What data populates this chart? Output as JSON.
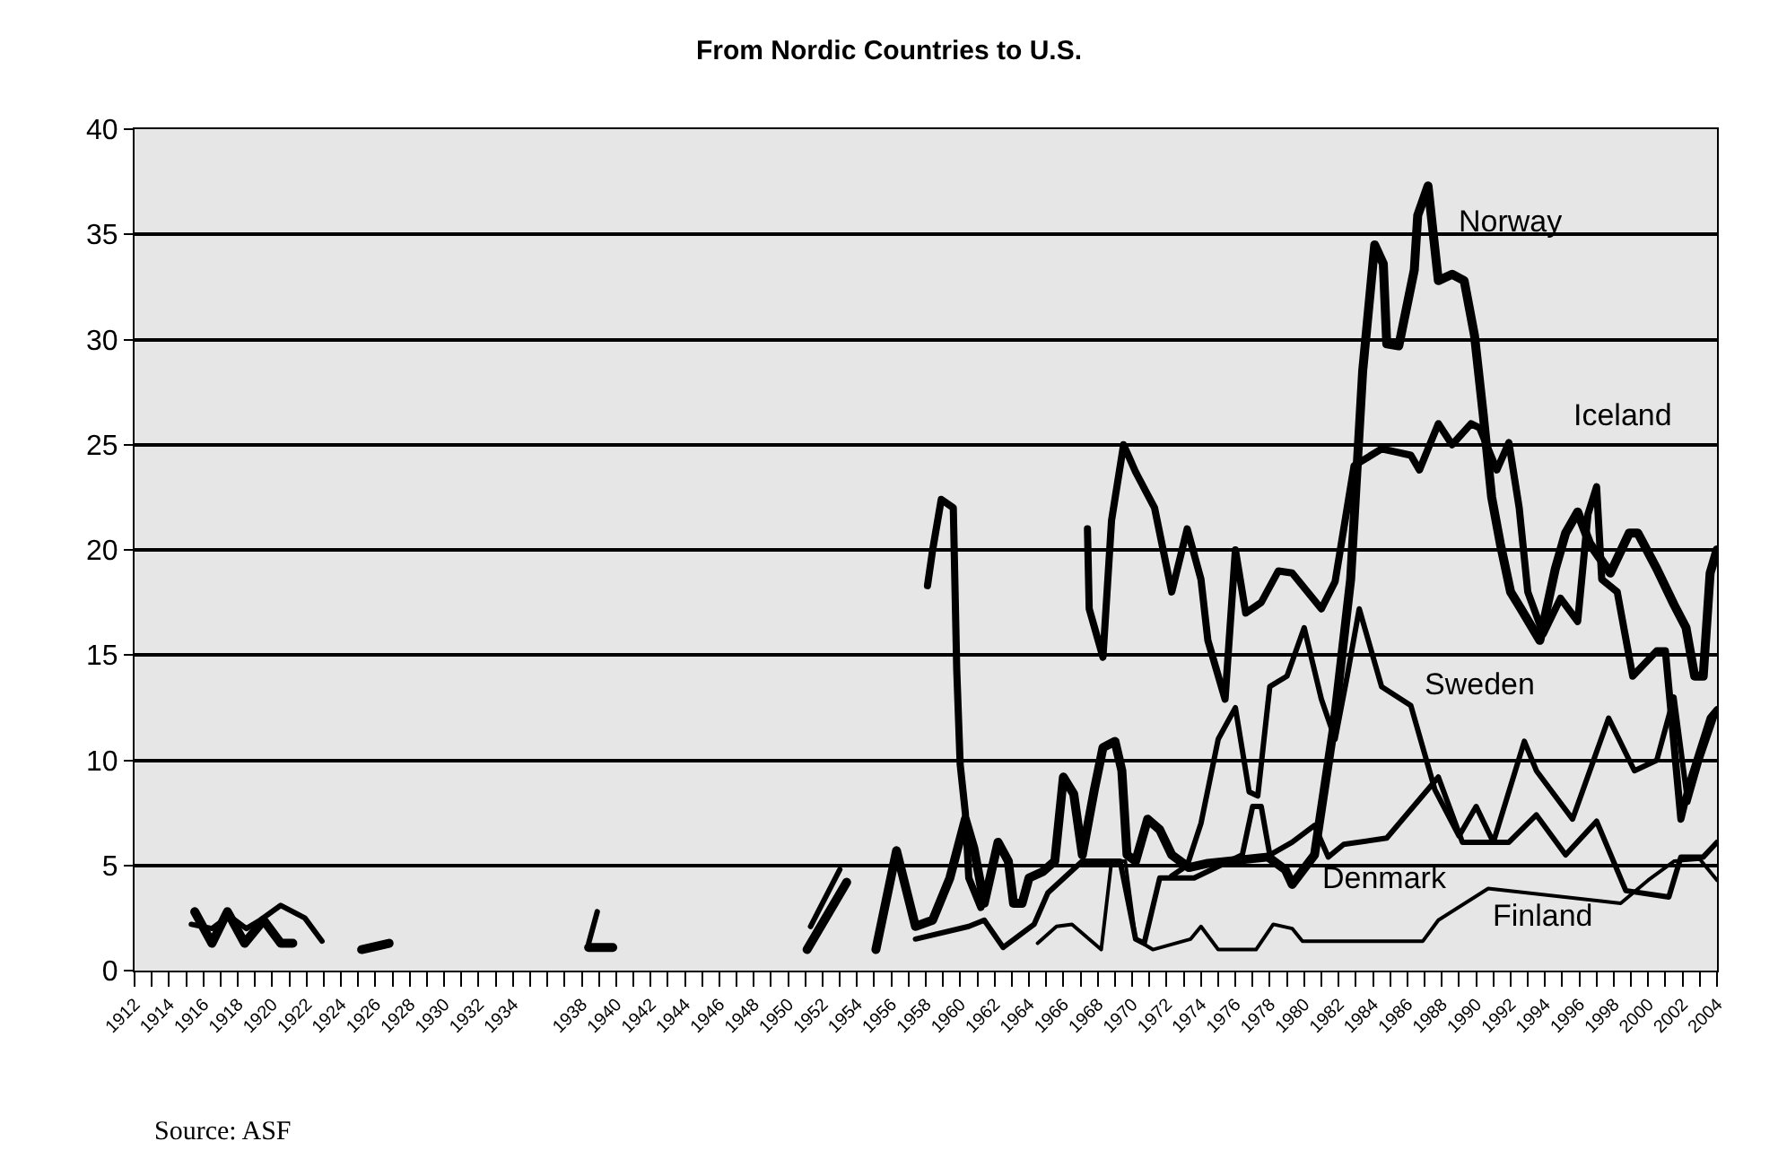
{
  "chart_data": {
    "type": "line",
    "title": "From Nordic Countries to U.S.",
    "xlim": [
      1912,
      2004
    ],
    "ylim": [
      0,
      40
    ],
    "xticks": [
      1912,
      1914,
      1916,
      1918,
      1920,
      1922,
      1924,
      1926,
      1928,
      1930,
      1932,
      1934,
      1938,
      1940,
      1942,
      1944,
      1946,
      1948,
      1950,
      1952,
      1954,
      1956,
      1958,
      1960,
      1962,
      1964,
      1966,
      1968,
      1970,
      1972,
      1974,
      1976,
      1978,
      1980,
      1982,
      1984,
      1986,
      1988,
      1990,
      1992,
      1994,
      1996,
      1998,
      2000,
      2002,
      2004
    ],
    "yticks": [
      0,
      5,
      10,
      15,
      20,
      25,
      30,
      35,
      40
    ],
    "grid": "y",
    "legend": false,
    "marker": "none",
    "line_style": "solid",
    "series": [
      {
        "name": "Norway",
        "color": "#000000",
        "x": [
          1915.5,
          1916.5,
          1917.4,
          1918.4,
          1919.5,
          1920.5,
          1921.2,
          1921.3,
          1925.2,
          1926.8,
          1926.9,
          1938.4,
          1939.8,
          1939.9,
          1951.1,
          1953.4,
          1953.5,
          1955.1,
          1956.3,
          1957.4,
          1958.4,
          1959.4,
          1960.3,
          1960.8,
          1961.4,
          1962.2,
          1962.8,
          1963.1,
          1963.6,
          1964.0,
          1964.8,
          1965.5,
          1966.0,
          1966.6,
          1967.1,
          1967.8,
          1968.3,
          1969.0,
          1969.4,
          1969.7,
          1970.2,
          1970.9,
          1971.6,
          1972.3,
          1973.3,
          1974.4,
          1977.9,
          1978.9,
          1979.3,
          1980.6,
          1981.7,
          1982.7,
          1983.4,
          1984.1,
          1984.6,
          1984.8,
          1985.5,
          1986.4,
          1986.6,
          1987.2,
          1987.8,
          1988.6,
          1989.3,
          1989.9,
          1990.4,
          1990.9,
          1991.4,
          1992.0,
          1992.6,
          1993.7,
          1994.6,
          1995.2,
          1995.9,
          1996.6,
          1997.8,
          1998.9,
          1999.4,
          2000.5,
          2001.5,
          2002.2,
          2002.7,
          2003.2,
          2003.6,
          2004.0
        ],
        "values": [
          2.8,
          1.3,
          2.8,
          1.3,
          2.4,
          1.3,
          1.3,
          null,
          1.0,
          1.3,
          null,
          1.1,
          1.1,
          null,
          1.0,
          4.2,
          null,
          1.0,
          5.7,
          2.1,
          2.4,
          4.4,
          7.2,
          5.8,
          3.2,
          6.1,
          5.2,
          3.2,
          3.2,
          4.4,
          4.7,
          5.2,
          9.2,
          8.4,
          5.5,
          8.6,
          10.6,
          10.9,
          9.5,
          5.5,
          5.2,
          7.2,
          6.7,
          5.5,
          4.9,
          5.1,
          5.4,
          4.8,
          4.1,
          5.5,
          11.5,
          18.6,
          28.5,
          34.5,
          33.6,
          29.8,
          29.7,
          33.3,
          35.9,
          37.3,
          32.8,
          33.1,
          32.8,
          30.2,
          26.5,
          22.5,
          20.3,
          18.0,
          17.2,
          15.7,
          19.1,
          20.8,
          21.8,
          20.3,
          18.9,
          20.8,
          20.8,
          19.1,
          17.4,
          16.3,
          14.0,
          14.0,
          18.9,
          20.0
        ]
      },
      {
        "name": "Iceland",
        "color": "#000000",
        "x": [
          1958.1,
          1958.4,
          1958.9,
          1959.6,
          1959.8,
          1960.0,
          1960.3,
          1960.5,
          1961.2,
          1961.3,
          1967.4,
          1967.5,
          1968.3,
          1968.8,
          1969.5,
          1970.2,
          1971.3,
          1972.3,
          1973.2,
          1974.0,
          1974.4,
          1975.4,
          1976.0,
          1976.6,
          1977.5,
          1978.5,
          1979.3,
          1981.0,
          1981.8,
          1982.9,
          1984.5,
          1986.2,
          1986.7,
          1987.8,
          1988.6,
          1989.7,
          1990.2,
          1991.2,
          1991.9,
          1992.5,
          1993.0,
          1993.9,
          1994.9,
          1995.9,
          1996.5,
          1997.0,
          1997.3,
          1998.2,
          1999.1,
          2000.5,
          2001.0,
          2001.9,
          2002.4,
          2003.6,
          2004.0
        ],
        "values": [
          18.3,
          20.0,
          22.4,
          22.0,
          14.3,
          9.8,
          7.5,
          4.4,
          3.0,
          null,
          21.0,
          17.2,
          14.9,
          21.4,
          25.0,
          23.7,
          22.0,
          18.0,
          21.0,
          18.6,
          15.7,
          12.9,
          20.0,
          17.0,
          17.5,
          19.0,
          18.9,
          17.2,
          18.5,
          24.0,
          24.8,
          24.5,
          23.8,
          26.0,
          25.0,
          26.0,
          25.8,
          23.8,
          25.1,
          22.0,
          18.0,
          16.0,
          17.7,
          16.6,
          21.7,
          23.0,
          18.6,
          18.0,
          14.0,
          15.2,
          15.2,
          7.2,
          8.9,
          12.0,
          12.4
        ]
      },
      {
        "name": "Sweden",
        "color": "#000000",
        "x": [
          1915.3,
          1916.5,
          1917.5,
          1918.5,
          1919.3,
          1920.5,
          1921.9,
          1922.9,
          1923.0,
          1938.4,
          1938.9,
          1939.0,
          1951.3,
          1953.0,
          1953.1,
          1972.3,
          1973.2,
          1974.0,
          1975.0,
          1976.0,
          1976.8,
          1977.3,
          1978.0,
          1979.0,
          1980.0,
          1981.0,
          1981.8,
          1982.5,
          1983.2,
          1984.5,
          1986.2,
          1987.6,
          1989.0,
          1990.0,
          1991.0,
          1992.8,
          1993.5,
          1995.6,
          1997.7,
          1999.2,
          2000.5,
          2001.5,
          2002.3,
          2003.0,
          2004.0
        ],
        "values": [
          2.2,
          2.0,
          2.6,
          2.0,
          2.4,
          3.1,
          2.5,
          1.4,
          null,
          1.3,
          2.8,
          null,
          2.1,
          4.8,
          null,
          4.5,
          5.0,
          7.0,
          11.0,
          12.5,
          8.5,
          8.3,
          13.5,
          14.0,
          16.3,
          12.9,
          11.0,
          14.0,
          17.2,
          13.5,
          12.6,
          8.6,
          6.4,
          7.8,
          6.1,
          10.9,
          9.5,
          7.2,
          12.0,
          9.5,
          10.0,
          13.0,
          8.0,
          10.0,
          12.4
        ]
      },
      {
        "name": "Denmark",
        "color": "#000000",
        "x": [
          1957.4,
          1960.5,
          1961.4,
          1962.5,
          1964.3,
          1965.1,
          1967.1,
          1969.3,
          1970.2,
          1970.7,
          1971.6,
          1973.6,
          1976.4,
          1977.0,
          1977.5,
          1978.0,
          1979.3,
          1980.6,
          1981.4,
          1982.3,
          1984.8,
          1987.8,
          1989.2,
          1991.9,
          1993.5,
          1995.2,
          1997.0,
          1998.7,
          2001.2,
          2001.9,
          2003.2,
          2004.0
        ],
        "values": [
          1.5,
          2.1,
          2.4,
          1.1,
          2.2,
          3.7,
          5.2,
          5.2,
          1.5,
          1.3,
          4.4,
          4.4,
          5.5,
          7.8,
          7.8,
          5.5,
          6.1,
          6.9,
          5.4,
          6.0,
          6.3,
          9.2,
          6.1,
          6.1,
          7.4,
          5.5,
          7.1,
          3.8,
          3.5,
          5.4,
          5.4,
          6.1
        ]
      },
      {
        "name": "Finland",
        "color": "#000000",
        "x": [
          1964.5,
          1965.6,
          1966.5,
          1968.2,
          1968.8,
          1969.6,
          1970.2,
          1971.2,
          1973.4,
          1974.0,
          1975.0,
          1977.2,
          1978.2,
          1979.3,
          1979.9,
          1986.9,
          1987.8,
          1990.7,
          1998.4,
          2000.0,
          2001.5,
          2003.0,
          2004.0
        ],
        "values": [
          1.3,
          2.1,
          2.2,
          1.0,
          5.2,
          5.2,
          1.5,
          1.0,
          1.5,
          2.1,
          1.0,
          1.0,
          2.2,
          2.0,
          1.4,
          1.4,
          2.4,
          3.9,
          3.2,
          4.3,
          5.2,
          5.3,
          4.3
        ]
      }
    ],
    "annotations": [
      "Source: ASF"
    ]
  }
}
